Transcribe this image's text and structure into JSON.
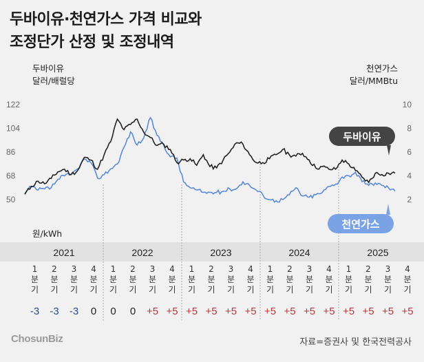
{
  "title_lines": [
    "두바이유·천연가스 가격 비교와",
    "조정단가 산정 및 조정내역"
  ],
  "chart_data": {
    "type": "line",
    "left_axis": {
      "title": "두바이유",
      "unit": "달러/배럴당",
      "ticks": [
        50,
        68,
        86,
        104,
        122
      ],
      "ylim": [
        50,
        122
      ]
    },
    "right_axis": {
      "title": "천연가스",
      "unit": "달러/MMBtu",
      "ticks": [
        2,
        4,
        6,
        8,
        10
      ],
      "ylim": [
        2,
        10
      ]
    },
    "grid": false,
    "x_range": [
      "2021-01",
      "2025-09"
    ],
    "series": [
      {
        "name": "두바이유",
        "axis": "left",
        "color": "#222222",
        "x": [
          "2021-01",
          "2021-02",
          "2021-03",
          "2021-04",
          "2021-05",
          "2021-06",
          "2021-07",
          "2021-08",
          "2021-09",
          "2021-10",
          "2021-11",
          "2021-12",
          "2022-01",
          "2022-02",
          "2022-03",
          "2022-04",
          "2022-05",
          "2022-06",
          "2022-07",
          "2022-08",
          "2022-09",
          "2022-10",
          "2022-11",
          "2022-12",
          "2023-01",
          "2023-02",
          "2023-03",
          "2023-04",
          "2023-05",
          "2023-06",
          "2023-07",
          "2023-08",
          "2023-09",
          "2023-10",
          "2023-11",
          "2023-12",
          "2024-01",
          "2024-02",
          "2024-03",
          "2024-04",
          "2024-05",
          "2024-06",
          "2024-07",
          "2024-08",
          "2024-09",
          "2024-10",
          "2024-11",
          "2024-12",
          "2025-01",
          "2025-02",
          "2025-03",
          "2025-04",
          "2025-05",
          "2025-06",
          "2025-07",
          "2025-08",
          "2025-09"
        ],
        "y": [
          54,
          60,
          64,
          62,
          66,
          71,
          73,
          69,
          72,
          82,
          80,
          73,
          84,
          94,
          111,
          103,
          107,
          111,
          101,
          97,
          91,
          92,
          88,
          78,
          80,
          81,
          76,
          84,
          75,
          74,
          80,
          86,
          93,
          92,
          84,
          78,
          78,
          81,
          84,
          88,
          84,
          83,
          85,
          80,
          74,
          75,
          73,
          73,
          80,
          77,
          72,
          67,
          63,
          70,
          69,
          70,
          70
        ]
      },
      {
        "name": "천연가스",
        "axis": "right",
        "color": "#5a8bd6",
        "x": [
          "2021-01",
          "2021-02",
          "2021-03",
          "2021-04",
          "2021-05",
          "2021-06",
          "2021-07",
          "2021-08",
          "2021-09",
          "2021-10",
          "2021-11",
          "2021-12",
          "2022-01",
          "2022-02",
          "2022-03",
          "2022-04",
          "2022-05",
          "2022-06",
          "2022-07",
          "2022-08",
          "2022-09",
          "2022-10",
          "2022-11",
          "2022-12",
          "2023-01",
          "2023-02",
          "2023-03",
          "2023-04",
          "2023-05",
          "2023-06",
          "2023-07",
          "2023-08",
          "2023-09",
          "2023-10",
          "2023-11",
          "2023-12",
          "2024-01",
          "2024-02",
          "2024-03",
          "2024-04",
          "2024-05",
          "2024-06",
          "2024-07",
          "2024-08",
          "2024-09",
          "2024-10",
          "2024-11",
          "2024-12",
          "2025-01",
          "2025-02",
          "2025-03",
          "2025-04",
          "2025-05",
          "2025-06",
          "2025-07",
          "2025-08",
          "2025-09"
        ],
        "y": [
          2.5,
          3.1,
          2.8,
          2.9,
          3.0,
          3.7,
          4.0,
          4.1,
          4.6,
          5.4,
          5.1,
          3.8,
          4.1,
          4.6,
          5.0,
          6.4,
          7.7,
          6.6,
          7.2,
          8.9,
          7.4,
          6.6,
          5.6,
          5.5,
          3.5,
          3.0,
          2.8,
          2.6,
          2.6,
          2.6,
          2.7,
          2.9,
          2.9,
          3.5,
          3.2,
          2.8,
          2.4,
          2.0,
          1.9,
          2.0,
          2.4,
          3.0,
          2.3,
          2.2,
          2.4,
          2.6,
          3.1,
          3.3,
          3.9,
          4.0,
          4.3,
          3.5,
          3.2,
          3.4,
          3.2,
          3.0,
          2.7
        ]
      }
    ],
    "callouts": {
      "oil": "두바이유",
      "gas": "천연가스"
    },
    "unit_note": "원/kWh",
    "years": [
      "2021",
      "2022",
      "2023",
      "2024",
      "2025"
    ],
    "quarters": [
      "1분기",
      "2분기",
      "3분기",
      "4분기",
      "1분기",
      "2분기",
      "3분기",
      "4분기",
      "1분기",
      "2분기",
      "3분기",
      "4분기",
      "1분기",
      "2분기",
      "3분기",
      "4분기",
      "1분기",
      "2분기",
      "3분기",
      "4분기"
    ],
    "adjustments": [
      "-3",
      "-3",
      "-3",
      "0",
      "0",
      "0",
      "+5",
      "+5",
      "+5",
      "+5",
      "+5",
      "+5",
      "+5",
      "+5",
      "+5",
      "+5",
      "+5",
      "+5",
      "+5",
      "+5"
    ]
  },
  "colors": {
    "oil": "#222222",
    "gas": "#5a8bd6",
    "negative": "#2a4a8a",
    "zero": "#222222",
    "positive": "#b23a3a",
    "callout_oil": "#444444",
    "callout_gas": "#7aa3e5"
  },
  "footer": {
    "logo": "ChosunBiz",
    "source": "자료=증권사 및 한국전력공사"
  }
}
